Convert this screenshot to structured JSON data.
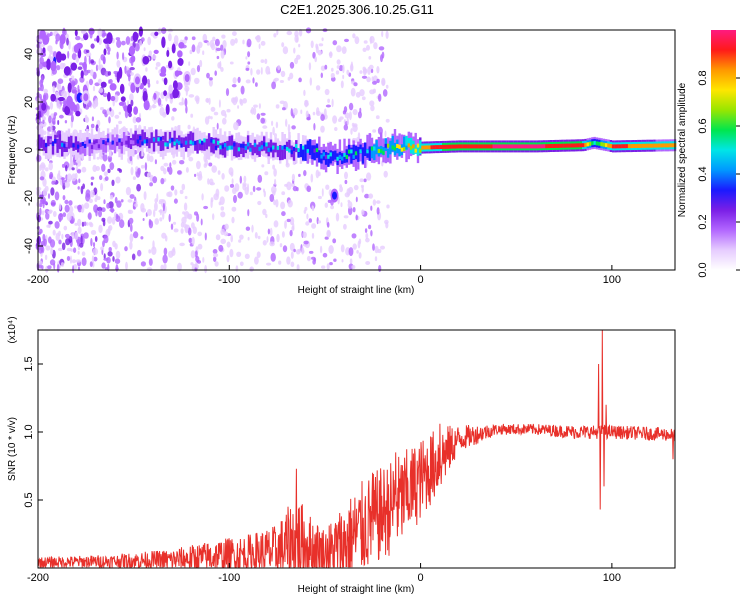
{
  "title": "C2E1.2025.306.10.25.G11",
  "chart_data": [
    {
      "type": "heatmap",
      "name": "spectrogram",
      "xlabel": "Height of straight line (km)",
      "ylabel": "Frequency (Hz)",
      "xlim": [
        -200,
        133
      ],
      "ylim": [
        -50,
        50
      ],
      "xticks": [
        {
          "value": -200,
          "label": "-200"
        },
        {
          "value": -100,
          "label": "-100"
        },
        {
          "value": 0,
          "label": "0"
        },
        {
          "value": 100,
          "label": "100"
        }
      ],
      "yticks": [
        {
          "value": -40,
          "label": "-40"
        },
        {
          "value": -20,
          "label": "-20"
        },
        {
          "value": 0,
          "label": "0"
        },
        {
          "value": 20,
          "label": "20"
        },
        {
          "value": 40,
          "label": "40"
        }
      ],
      "colorbar": {
        "label": "Normalized spectral amplitude",
        "range": [
          0.0,
          1.0
        ],
        "ticks": [
          {
            "value": 0.0,
            "label": "0.0"
          },
          {
            "value": 0.2,
            "label": "0.2"
          },
          {
            "value": 0.4,
            "label": "0.4"
          },
          {
            "value": 0.6,
            "label": "0.6"
          },
          {
            "value": 0.8,
            "label": "0.8"
          }
        ],
        "colors": [
          "#ffffff",
          "#e6ccff",
          "#b266ff",
          "#7a1fe6",
          "#1a1aff",
          "#0099ff",
          "#00e6e6",
          "#00e64d",
          "#99e600",
          "#ffe600",
          "#ff9900",
          "#ff1a1a",
          "#ff1a80"
        ]
      },
      "main_band": [
        {
          "x": -200,
          "f": 3.0,
          "amp": 0.35
        },
        {
          "x": -180,
          "f": 2.0,
          "amp": 0.35
        },
        {
          "x": -160,
          "f": 3.0,
          "amp": 0.3
        },
        {
          "x": -140,
          "f": 4.0,
          "amp": 0.45
        },
        {
          "x": -120,
          "f": 3.0,
          "amp": 0.45
        },
        {
          "x": -100,
          "f": 2.0,
          "amp": 0.45
        },
        {
          "x": -80,
          "f": 1.0,
          "amp": 0.45
        },
        {
          "x": -60,
          "f": 0.0,
          "amp": 0.5
        },
        {
          "x": -45,
          "f": -3.0,
          "amp": 0.55
        },
        {
          "x": -30,
          "f": -1.0,
          "amp": 0.6
        },
        {
          "x": -15,
          "f": 1.0,
          "amp": 0.7
        },
        {
          "x": 0,
          "f": 1.0,
          "amp": 0.85
        },
        {
          "x": 20,
          "f": 1.5,
          "amp": 0.95
        },
        {
          "x": 60,
          "f": 1.5,
          "amp": 0.97
        },
        {
          "x": 85,
          "f": 2.0,
          "amp": 0.9
        },
        {
          "x": 90,
          "f": 3.0,
          "amp": 0.5
        },
        {
          "x": 100,
          "f": 1.5,
          "amp": 0.9
        },
        {
          "x": 133,
          "f": 2.0,
          "amp": 0.8
        }
      ],
      "features": [
        {
          "x": -45,
          "f": -19,
          "amp": 0.3
        },
        {
          "x": -148,
          "f": 29,
          "amp": 0.2
        },
        {
          "x": -175,
          "f": 22,
          "amp": 0.2
        },
        {
          "x": -122,
          "f": 30,
          "amp": 0.2
        },
        {
          "x": -197,
          "f": 18,
          "amp": 0.25
        }
      ]
    },
    {
      "type": "line",
      "name": "snr",
      "xlabel": "Height of straight line (km)",
      "ylabel": "SNR (10 * v/v)",
      "multiplier": "(x10⁴)",
      "xlim": [
        -200,
        133
      ],
      "ylim": [
        0,
        1.75
      ],
      "xticks": [
        {
          "value": -200,
          "label": "-200"
        },
        {
          "value": -100,
          "label": "-100"
        },
        {
          "value": 0,
          "label": "0"
        },
        {
          "value": 100,
          "label": "100"
        }
      ],
      "yticks": [
        {
          "value": 0.5,
          "label": "0.5"
        },
        {
          "value": 1.0,
          "label": "1.0"
        },
        {
          "value": 1.5,
          "label": "1.5"
        }
      ],
      "color": "#e8302a",
      "envelope": [
        {
          "x": -200,
          "base": 0.04,
          "amp": 0.04
        },
        {
          "x": -160,
          "base": 0.05,
          "amp": 0.05
        },
        {
          "x": -130,
          "base": 0.06,
          "amp": 0.08
        },
        {
          "x": -110,
          "base": 0.08,
          "amp": 0.12
        },
        {
          "x": -90,
          "base": 0.1,
          "amp": 0.15
        },
        {
          "x": -75,
          "base": 0.12,
          "amp": 0.2
        },
        {
          "x": -65,
          "base": 0.2,
          "amp": 0.35
        },
        {
          "x": -58,
          "base": 0.15,
          "amp": 0.25
        },
        {
          "x": -50,
          "base": 0.1,
          "amp": 0.2
        },
        {
          "x": -42,
          "base": 0.15,
          "amp": 0.3
        },
        {
          "x": -30,
          "base": 0.3,
          "amp": 0.35
        },
        {
          "x": -20,
          "base": 0.4,
          "amp": 0.35
        },
        {
          "x": -10,
          "base": 0.5,
          "amp": 0.35
        },
        {
          "x": 0,
          "base": 0.65,
          "amp": 0.3
        },
        {
          "x": 10,
          "base": 0.8,
          "amp": 0.25
        },
        {
          "x": 20,
          "base": 0.95,
          "amp": 0.1
        },
        {
          "x": 40,
          "base": 1.02,
          "amp": 0.04
        },
        {
          "x": 60,
          "base": 1.02,
          "amp": 0.04
        },
        {
          "x": 80,
          "base": 1.0,
          "amp": 0.05
        },
        {
          "x": 100,
          "base": 1.0,
          "amp": 0.05
        },
        {
          "x": 133,
          "base": 0.98,
          "amp": 0.05
        }
      ],
      "spikes": [
        {
          "x": -65,
          "y": 0.73
        },
        {
          "x": -40,
          "y": 0.35
        },
        {
          "x": -25,
          "y": 0.7
        },
        {
          "x": -13,
          "y": 0.85
        },
        {
          "x": 10,
          "y": 1.06
        },
        {
          "x": 93,
          "y": 1.5
        },
        {
          "x": 94,
          "y": 0.43
        },
        {
          "x": 95,
          "y": 1.75
        },
        {
          "x": 96,
          "y": 0.6
        },
        {
          "x": 97,
          "y": 1.2
        },
        {
          "x": 132,
          "y": 0.8
        }
      ]
    }
  ]
}
